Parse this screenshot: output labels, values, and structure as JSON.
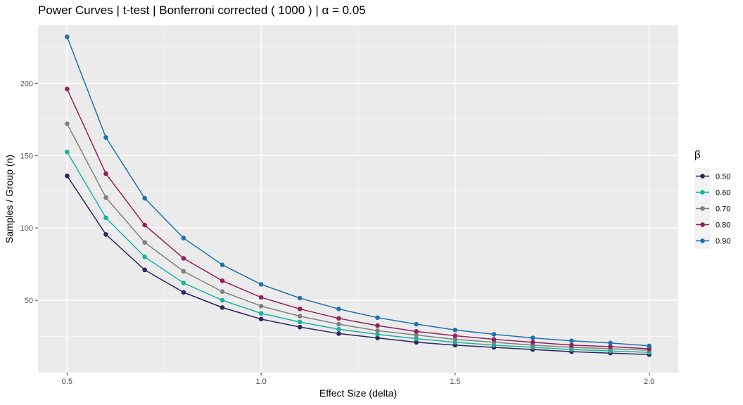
{
  "chart_data": {
    "type": "line",
    "title": "Power Curves | t-test | Bonferroni corrected ( 1000 ) | α = 0.05",
    "xlabel": "Effect Size (delta)",
    "ylabel": "Samples / Group (n)",
    "xlim": [
      0.425,
      2.075
    ],
    "ylim": [
      0,
      240
    ],
    "x_ticks": [
      0.5,
      1.0,
      1.5,
      2.0
    ],
    "x_tick_labels": [
      "0.5",
      "1.0",
      "1.5",
      "2.0"
    ],
    "y_ticks": [
      50,
      100,
      150,
      200
    ],
    "y_tick_labels": [
      "50",
      "100",
      "150",
      "200"
    ],
    "grid": true,
    "legend_title": "β",
    "legend_position": "right",
    "x": [
      0.5,
      0.6,
      0.7,
      0.8,
      0.9,
      1.0,
      1.1,
      1.2,
      1.3,
      1.4,
      1.5,
      1.6,
      1.7,
      1.8,
      1.9,
      2.0
    ],
    "series": [
      {
        "name": "0.50",
        "color": "#2d2462",
        "values": [
          136,
          95.5,
          71,
          55.5,
          45,
          37,
          31.5,
          27,
          24,
          21,
          19,
          17.5,
          16,
          14.5,
          13.5,
          12.5
        ]
      },
      {
        "name": "0.60",
        "color": "#1ab39e",
        "values": [
          152.5,
          107,
          80,
          62,
          50,
          41,
          35,
          30,
          26.5,
          23.5,
          21,
          19,
          17.5,
          16,
          15,
          14
        ]
      },
      {
        "name": "0.70",
        "color": "#7f7f7f",
        "values": [
          172,
          121,
          90,
          70,
          56,
          46,
          39,
          33.5,
          29,
          26,
          23,
          21,
          19,
          17.5,
          16.5,
          15.5
        ]
      },
      {
        "name": "0.80",
        "color": "#90225c",
        "values": [
          196,
          137.5,
          102,
          79,
          63.5,
          52,
          44,
          37.5,
          32.5,
          28.5,
          25.5,
          23,
          21,
          19,
          18,
          16.5
        ]
      },
      {
        "name": "0.90",
        "color": "#1f72ab",
        "values": [
          232,
          162.5,
          120.5,
          93,
          74.5,
          61,
          51.5,
          44,
          38,
          33.5,
          29.5,
          26.5,
          24,
          22,
          20.5,
          18.5
        ]
      }
    ]
  }
}
